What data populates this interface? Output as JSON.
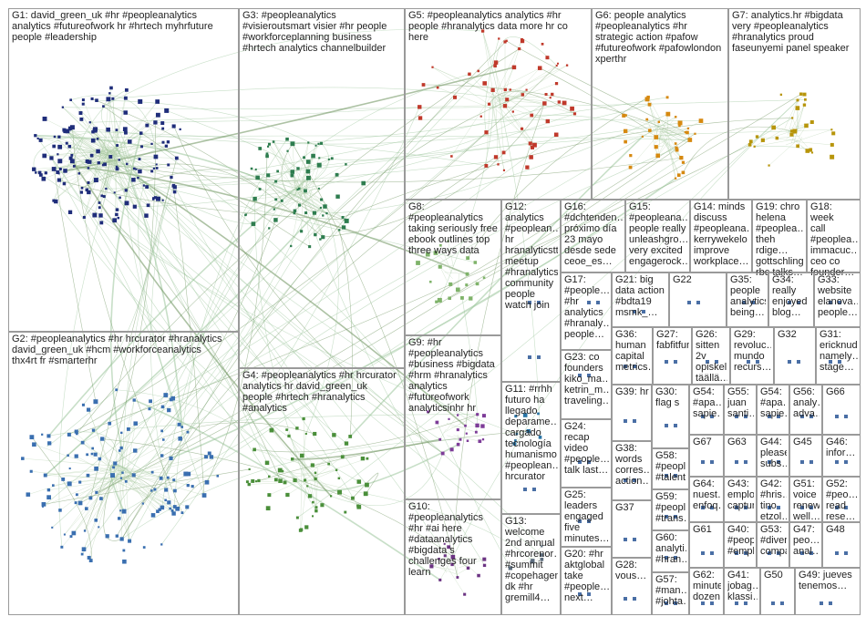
{
  "groups": [
    {
      "id": "G1",
      "text": "G1: david_green_uk #hr #peopleanalytics\nanalytics #futureofwork hr #hrtech myhrfuture\npeople #leadership"
    },
    {
      "id": "G2",
      "text": "G2: #peopleanalytics #hr hrcurator #hranalytics\ndavid_green_uk #hcm #workforceanalytics\nthx4rt fr #smarterhr"
    },
    {
      "id": "G3",
      "text": "G3: #peopleanalytics\n#visieroutsmart visier #hr people\n#workforceplanning business\n#hrtech analytics channelbuilder"
    },
    {
      "id": "G4",
      "text": "G4: #peopleanalytics #hr hrcurator\nanalytics hr david_green_uk\npeople #hrtech #hranalytics\n#analytics"
    },
    {
      "id": "G5",
      "text": "G5: #peopleanalytics analytics #hr\npeople #hranalytics data more hr co\nhere"
    },
    {
      "id": "G6",
      "text": "G6: people analytics\n#peopleanalytics #hr\nstrategic action #pafow\n#futureofwork #pafowlondon\nxperthr"
    },
    {
      "id": "G7",
      "text": "G7: analytics.hr #bigdata\nvery #peopleanalytics\n#hranalytics proud\nfaseunyemi panel speaker"
    },
    {
      "id": "G8",
      "text": "G8:\n#peopleanalytics\ntaking seriously free\nebook outlines top\nthree ways data"
    },
    {
      "id": "G9",
      "text": "G9: #hr\n#peopleanalytics\n#business #bigdata\n#hrm #hranalytics\nanalytics\n#futureofwork\nanalyticsinhr hr"
    },
    {
      "id": "G10",
      "text": "G10:\n#peopleanalytics\n#hr #ai here\n#dataanalytics\n#bigdata s\nchallenges four\nlearn"
    },
    {
      "id": "G11",
      "text": "G11: #rrhh\nfuturo ha\nllegado\ndeparame…\ncargado\ntecnología\nhumanismo\n#peoplean…\nhrcurator"
    },
    {
      "id": "G12",
      "text": "G12:\nanalytics\n#peoplean…\nhr\nhranalyticstt\nmeetup\n#hranalytics\ncommunity\npeople\nwatch join"
    },
    {
      "id": "G13",
      "text": "G13:\nwelcome\n2nd annual\n#hrcorenor…\n#summit\n#copehagen\ndk #hr\ngremill4…"
    },
    {
      "id": "G14",
      "text": "G14: minds\ndiscuss\n#peopleana…\nkerrywekelo\nimprove\nworkplace…"
    },
    {
      "id": "G15",
      "text": "G15:\n#peopleana…\npeople really\nunleashgro…\nvery excited\nengagerock…"
    },
    {
      "id": "G16",
      "text": "G16:\n#dchtenden…\npróximo día\n23 mayo\ndesde sede\nceoe_es…"
    },
    {
      "id": "G17",
      "text": "G17:\n#people…\n#hr\nanalytics\n#hranaly…\npeople…"
    },
    {
      "id": "G18",
      "text": "G18: week\ncall\n#peoplea…\nimmacuc…\nceo co\nfounder…"
    },
    {
      "id": "G19",
      "text": "G19: chro\nhelena\n#peoplea…\ntheh rdige…\ngottschling\nrbc talks…"
    },
    {
      "id": "G20",
      "text": "G20: #hr\naktglobal\ntake\n#people…\nnext…"
    },
    {
      "id": "G21",
      "text": "G21: big\ndata action\n#bdta19\nmsmk_…"
    },
    {
      "id": "G22",
      "text": "G22"
    },
    {
      "id": "G23",
      "text": "G23: co\nfounders\nkiko_ma…\nketrin_m…\ntraveling…"
    },
    {
      "id": "G24",
      "text": "G24:\nrecap\nvideo\n#people…\ntalk last…"
    },
    {
      "id": "G25",
      "text": "G25:\nleaders\nengaged\nfive\nminutes…"
    },
    {
      "id": "G26",
      "text": "G26:\nsitten 2v\nopiskelin\ntäällä…"
    },
    {
      "id": "G27",
      "text": "G27:\nfabfitfun"
    },
    {
      "id": "G28",
      "text": "G28:\nvous…"
    },
    {
      "id": "G29",
      "text": "G29:\nrevoluc…\nmundo\nrecurs…"
    },
    {
      "id": "G30",
      "text": "G30:\nflag s"
    },
    {
      "id": "G31",
      "text": "G31:\nericknud\nnamely…\nstage…"
    },
    {
      "id": "G32",
      "text": "G32"
    },
    {
      "id": "G33",
      "text": "G33:\nwebsite\nelanova…\npeople…"
    },
    {
      "id": "G34",
      "text": "G34:\nreally\nenjoyed\nblog…"
    },
    {
      "id": "G35",
      "text": "G35:\npeople\nanalytics\nbeing…"
    },
    {
      "id": "G36",
      "text": "G36:\nhuman\ncapital\nmetrics…"
    },
    {
      "id": "G37",
      "text": "G37"
    },
    {
      "id": "G38",
      "text": "G38:\nwords\ncorres…\naction…"
    },
    {
      "id": "G39",
      "text": "G39: hr"
    },
    {
      "id": "G40",
      "text": "G40:\n#peop…\n#empl…"
    },
    {
      "id": "G41",
      "text": "G41:\njobag…\nklassi…"
    },
    {
      "id": "G42",
      "text": "G42:\n#hris…\ntino\netzol…"
    },
    {
      "id": "G43",
      "text": "G43:\nemplo…\ncaptur…"
    },
    {
      "id": "G44",
      "text": "G44:\nplease\nsubs…"
    },
    {
      "id": "G45",
      "text": "G45"
    },
    {
      "id": "G46",
      "text": "G46:\ninfor…"
    },
    {
      "id": "G47",
      "text": "G47:\npeo…\nanal…"
    },
    {
      "id": "G48",
      "text": "G48"
    },
    {
      "id": "G49",
      "text": "G49: jueves\ntenemos…"
    },
    {
      "id": "G50",
      "text": "G50"
    },
    {
      "id": "G51",
      "text": "G51:\nvoice\nrenew…\nwell…"
    },
    {
      "id": "G52",
      "text": "G52:\n#peo…\nread\nrese…"
    },
    {
      "id": "G53",
      "text": "G53:\n#diver…\ncompa…"
    },
    {
      "id": "G54",
      "text": "G54:\n#apa…\nsapie…"
    },
    {
      "id": "G55",
      "text": "G55:\njuan\nsanti…"
    },
    {
      "id": "G56",
      "text": "G56:\nanaly…\nadva…"
    },
    {
      "id": "G57",
      "text": "G57:\n#man…\n#johta…"
    },
    {
      "id": "G58",
      "text": "G58:\n#peopl…\n#talent…"
    },
    {
      "id": "G59",
      "text": "G59:\n#peopl…\n#trans…"
    },
    {
      "id": "G60",
      "text": "G60:\nanalyti…\n#hran…"
    },
    {
      "id": "G61",
      "text": "G61"
    },
    {
      "id": "G62",
      "text": "G62:\nminute\ndozen…"
    },
    {
      "id": "G63",
      "text": "G63"
    },
    {
      "id": "G64",
      "text": "G64:\nnuest…\nenfoq…"
    },
    {
      "id": "G65",
      "text": "G65"
    },
    {
      "id": "G66",
      "text": "G66"
    },
    {
      "id": "G67",
      "text": "G67"
    }
  ]
}
